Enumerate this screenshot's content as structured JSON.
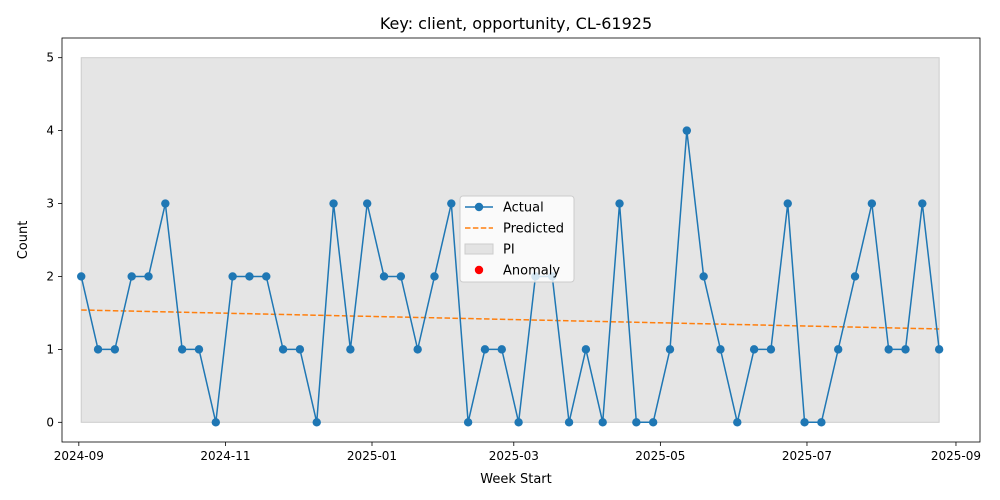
{
  "chart_data": {
    "type": "line",
    "title": "Key: client, opportunity, CL-61925",
    "xlabel": "Week Start",
    "ylabel": "Count",
    "ylim": [
      -0.27,
      5.27
    ],
    "xlim": [
      "2024-08-25",
      "2025-09-11"
    ],
    "grid": false,
    "legend_position": "center",
    "x_tick_labels": [
      "2024-09",
      "2024-11",
      "2025-01",
      "2025-03",
      "2025-05",
      "2025-07",
      "2025-09"
    ],
    "y_tick_labels": [
      "0",
      "1",
      "2",
      "3",
      "4",
      "5"
    ],
    "x": [
      "2024-09-02",
      "2024-09-09",
      "2024-09-16",
      "2024-09-23",
      "2024-09-30",
      "2024-10-07",
      "2024-10-14",
      "2024-10-21",
      "2024-10-28",
      "2024-11-04",
      "2024-11-11",
      "2024-11-18",
      "2024-11-25",
      "2024-12-02",
      "2024-12-09",
      "2024-12-16",
      "2024-12-23",
      "2024-12-30",
      "2025-01-06",
      "2025-01-13",
      "2025-01-20",
      "2025-01-27",
      "2025-02-03",
      "2025-02-10",
      "2025-02-17",
      "2025-02-24",
      "2025-03-03",
      "2025-03-10",
      "2025-03-17",
      "2025-03-24",
      "2025-03-31",
      "2025-04-07",
      "2025-04-14",
      "2025-04-21",
      "2025-04-28",
      "2025-05-05",
      "2025-05-12",
      "2025-05-19",
      "2025-05-26",
      "2025-06-02",
      "2025-06-09",
      "2025-06-16",
      "2025-06-23",
      "2025-06-30",
      "2025-07-07",
      "2025-07-14",
      "2025-07-21",
      "2025-07-28",
      "2025-08-04",
      "2025-08-11",
      "2025-08-18",
      "2025-08-25"
    ],
    "series": [
      {
        "name": "Actual",
        "color": "#1f77b4",
        "style": "solid-with-markers",
        "values": [
          2,
          1,
          1,
          2,
          2,
          3,
          1,
          1,
          0,
          2,
          2,
          2,
          1,
          1,
          0,
          3,
          1,
          3,
          2,
          2,
          1,
          2,
          3,
          0,
          1,
          1,
          0,
          2,
          2,
          0,
          1,
          0,
          3,
          0,
          0,
          1,
          4,
          2,
          1,
          0,
          1,
          1,
          3,
          0,
          0,
          1,
          2,
          3,
          1,
          1,
          3,
          1
        ]
      },
      {
        "name": "Predicted",
        "color": "#ff7f0e",
        "style": "dashed",
        "start": [
          "2024-09-02",
          1.54
        ],
        "end": [
          "2025-08-25",
          1.28
        ]
      },
      {
        "name": "PI",
        "color": "#cccccc",
        "style": "band",
        "lower": 0,
        "upper": 5
      },
      {
        "name": "Anomaly",
        "color": "#ff0000",
        "style": "scatter",
        "points": []
      }
    ]
  }
}
